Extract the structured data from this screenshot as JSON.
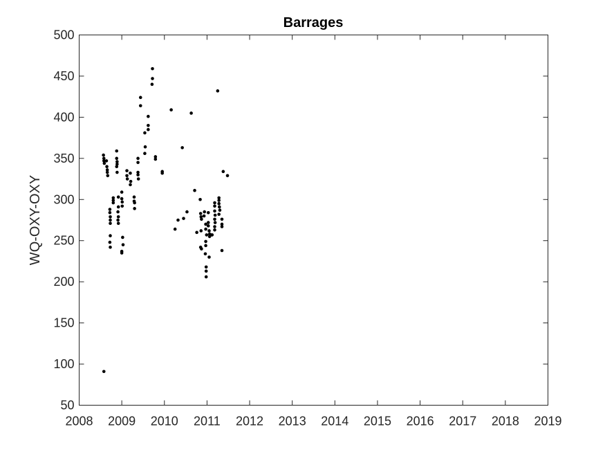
{
  "chart_data": {
    "type": "scatter",
    "title": "Barrages",
    "xlabel": "",
    "ylabel": "WQ-OXY-OXY",
    "xlim": [
      2008,
      2019
    ],
    "ylim": [
      50,
      500
    ],
    "x_ticks": [
      "2008",
      "2009",
      "2010",
      "2011",
      "2012",
      "2013",
      "2014",
      "2015",
      "2016",
      "2017",
      "2018",
      "2019"
    ],
    "y_ticks": [
      "50",
      "100",
      "150",
      "200",
      "250",
      "300",
      "350",
      "400",
      "450",
      "500"
    ],
    "grid": false,
    "marker_color": "#000000",
    "points": [
      [
        2008.58,
        91
      ],
      [
        2008.57,
        354
      ],
      [
        2008.58,
        350
      ],
      [
        2008.58,
        347
      ],
      [
        2008.59,
        344
      ],
      [
        2008.64,
        347
      ],
      [
        2008.65,
        340
      ],
      [
        2008.66,
        336
      ],
      [
        2008.66,
        333
      ],
      [
        2008.67,
        329
      ],
      [
        2008.72,
        288
      ],
      [
        2008.72,
        284
      ],
      [
        2008.73,
        279
      ],
      [
        2008.73,
        275
      ],
      [
        2008.73,
        271
      ],
      [
        2008.73,
        256
      ],
      [
        2008.72,
        248
      ],
      [
        2008.73,
        242
      ],
      [
        2008.8,
        302
      ],
      [
        2008.8,
        299
      ],
      [
        2008.8,
        296
      ],
      [
        2008.88,
        359
      ],
      [
        2008.88,
        350
      ],
      [
        2008.89,
        346
      ],
      [
        2008.89,
        343
      ],
      [
        2008.88,
        340
      ],
      [
        2008.89,
        333
      ],
      [
        2008.92,
        303
      ],
      [
        2008.92,
        291
      ],
      [
        2008.91,
        285
      ],
      [
        2008.92,
        279
      ],
      [
        2008.91,
        275
      ],
      [
        2008.92,
        271
      ],
      [
        2009.0,
        309
      ],
      [
        2009.0,
        301
      ],
      [
        2009.01,
        297
      ],
      [
        2009.01,
        292
      ],
      [
        2009.02,
        254
      ],
      [
        2009.03,
        245
      ],
      [
        2009.0,
        237
      ],
      [
        2009.0,
        235
      ],
      [
        2009.12,
        335
      ],
      [
        2009.12,
        329
      ],
      [
        2009.13,
        325
      ],
      [
        2009.2,
        332
      ],
      [
        2009.21,
        322
      ],
      [
        2009.2,
        318
      ],
      [
        2009.29,
        303
      ],
      [
        2009.29,
        298
      ],
      [
        2009.3,
        296
      ],
      [
        2009.3,
        289
      ],
      [
        2009.38,
        350
      ],
      [
        2009.38,
        345
      ],
      [
        2009.38,
        333
      ],
      [
        2009.38,
        330
      ],
      [
        2009.39,
        325
      ],
      [
        2009.44,
        424
      ],
      [
        2009.44,
        414
      ],
      [
        2009.54,
        381
      ],
      [
        2009.55,
        364
      ],
      [
        2009.54,
        356
      ],
      [
        2009.62,
        401
      ],
      [
        2009.62,
        390
      ],
      [
        2009.62,
        385
      ],
      [
        2009.72,
        459
      ],
      [
        2009.72,
        447
      ],
      [
        2009.71,
        440
      ],
      [
        2009.79,
        352
      ],
      [
        2009.79,
        349
      ],
      [
        2009.95,
        334
      ],
      [
        2009.95,
        332
      ],
      [
        2010.16,
        409
      ],
      [
        2010.25,
        264
      ],
      [
        2010.32,
        275
      ],
      [
        2010.42,
        363
      ],
      [
        2010.45,
        277
      ],
      [
        2010.53,
        285
      ],
      [
        2010.63,
        405
      ],
      [
        2010.71,
        311
      ],
      [
        2010.76,
        260
      ],
      [
        2010.84,
        300
      ],
      [
        2010.85,
        283
      ],
      [
        2010.86,
        279
      ],
      [
        2010.87,
        276
      ],
      [
        2010.86,
        262
      ],
      [
        2010.85,
        242
      ],
      [
        2010.87,
        240
      ],
      [
        2010.94,
        285
      ],
      [
        2010.93,
        280
      ],
      [
        2010.97,
        270
      ],
      [
        2010.97,
        264
      ],
      [
        2010.99,
        257
      ],
      [
        2010.97,
        249
      ],
      [
        2010.97,
        244
      ],
      [
        2010.96,
        234
      ],
      [
        2010.98,
        218
      ],
      [
        2010.98,
        213
      ],
      [
        2010.98,
        206
      ],
      [
        2011.03,
        284
      ],
      [
        2011.03,
        272
      ],
      [
        2011.03,
        268
      ],
      [
        2011.05,
        262
      ],
      [
        2011.06,
        258
      ],
      [
        2011.06,
        255
      ],
      [
        2011.05,
        230
      ],
      [
        2011.11,
        257
      ],
      [
        2011.12,
        257
      ],
      [
        2011.18,
        296
      ],
      [
        2011.18,
        292
      ],
      [
        2011.18,
        286
      ],
      [
        2011.19,
        281
      ],
      [
        2011.18,
        276
      ],
      [
        2011.19,
        272
      ],
      [
        2011.18,
        267
      ],
      [
        2011.18,
        263
      ],
      [
        2011.25,
        432
      ],
      [
        2011.28,
        302
      ],
      [
        2011.28,
        299
      ],
      [
        2011.28,
        295
      ],
      [
        2011.29,
        291
      ],
      [
        2011.3,
        287
      ],
      [
        2011.28,
        282
      ],
      [
        2011.35,
        276
      ],
      [
        2011.35,
        270
      ],
      [
        2011.35,
        267
      ],
      [
        2011.35,
        238
      ],
      [
        2011.38,
        334
      ],
      [
        2011.48,
        329
      ]
    ]
  }
}
